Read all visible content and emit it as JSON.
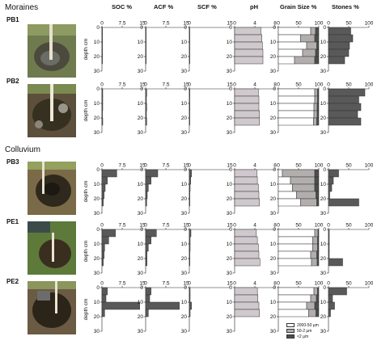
{
  "sections": {
    "moraines": "Moraines",
    "colluvium": "Colluvium"
  },
  "headers": {
    "soc": "SOC  %",
    "acf": "ACF %",
    "scf": "SCF %",
    "ph": "pH",
    "grain": "Grain Size %",
    "stones": "Stones %"
  },
  "depth_label": "depth  cm",
  "colors": {
    "bar_dark": "#595959",
    "bar_ph": "#cfc8cc",
    "coarse": "#ffffff",
    "mid": "#b3aeae",
    "fine": "#4d4d4d"
  },
  "chart_data": {
    "type": "bar",
    "orientation": "horizontal",
    "depth_ticks": [
      0,
      10,
      20,
      30
    ],
    "depth_range": [
      0,
      30
    ],
    "panels": [
      {
        "key": "soc",
        "ticks": [
          "0",
          "7.5",
          "15"
        ],
        "range": [
          0,
          15
        ]
      },
      {
        "key": "acf",
        "ticks": [
          "0",
          "7.5",
          "15"
        ],
        "range": [
          0,
          15
        ]
      },
      {
        "key": "scf",
        "ticks": [
          "0",
          "15"
        ],
        "range": [
          0,
          15
        ]
      },
      {
        "key": "ph",
        "ticks": [
          "0",
          "4",
          "8"
        ],
        "range": [
          0,
          8
        ]
      },
      {
        "key": "grain",
        "ticks": [
          "0",
          "50",
          "100"
        ],
        "range": [
          0,
          100
        ]
      },
      {
        "key": "stones",
        "ticks": [
          "0",
          "50",
          "100"
        ],
        "range": [
          0,
          100
        ]
      }
    ],
    "grain_legend": [
      "2000-50 µm",
      "50-2 µm",
      "<2 µm"
    ],
    "sites": [
      {
        "name": "PB1",
        "layers": [
          [
            0,
            5
          ],
          [
            5,
            10
          ],
          [
            10,
            15
          ],
          [
            15,
            20
          ],
          [
            20,
            25
          ]
        ],
        "soc": [
          0.2,
          0.2,
          0.2,
          0.2,
          0.2
        ],
        "acf": [
          0.2,
          0.2,
          0.2,
          0.2,
          0.2
        ],
        "scf": [
          0.1,
          0.1,
          0.1,
          0.1,
          0.1
        ],
        "ph": [
          5.2,
          5.4,
          5.5,
          5.6,
          5.6
        ],
        "grain": [
          [
            80,
            12,
            8
          ],
          [
            55,
            35,
            10
          ],
          [
            70,
            25,
            5
          ],
          [
            60,
            32,
            8
          ],
          [
            40,
            50,
            10
          ]
        ],
        "stones": [
          55,
          60,
          52,
          50,
          40
        ]
      },
      {
        "name": "PB2",
        "layers": [
          [
            0,
            5
          ],
          [
            5,
            10
          ],
          [
            10,
            15
          ],
          [
            15,
            20
          ],
          [
            20,
            25
          ]
        ],
        "soc": [
          0.3,
          0.3,
          0.3,
          0.2,
          0.3
        ],
        "acf": [
          0.4,
          0.3,
          0.4,
          0.3,
          0.4
        ],
        "scf": [
          0.2,
          0.1,
          0.2,
          0.1,
          0.1
        ],
        "ph": [
          4.7,
          4.8,
          4.8,
          4.9,
          4.9
        ],
        "grain": [
          [
            90,
            7,
            3
          ],
          [
            90,
            7,
            3
          ],
          [
            88,
            8,
            4
          ],
          [
            88,
            8,
            4
          ],
          [
            87,
            8,
            5
          ]
        ],
        "stones": [
          90,
          75,
          80,
          72,
          80
        ]
      },
      {
        "name": "PB3",
        "layers": [
          [
            0,
            5
          ],
          [
            5,
            10
          ],
          [
            10,
            15
          ],
          [
            15,
            20
          ],
          [
            20,
            25
          ]
        ],
        "soc": [
          5.5,
          2.0,
          1.2,
          0.8,
          0.5
        ],
        "acf": [
          4.5,
          2.0,
          1.0,
          0.6,
          0.4
        ],
        "scf": [
          0.8,
          0.5,
          0.3,
          0.2,
          0.2
        ],
        "ph": [
          4.4,
          4.5,
          4.7,
          4.8,
          4.9
        ],
        "grain": [
          [
            10,
            80,
            10
          ],
          [
            30,
            60,
            10
          ],
          [
            35,
            55,
            10
          ],
          [
            45,
            48,
            7
          ],
          [
            55,
            40,
            5
          ]
        ],
        "stones": [
          25,
          12,
          8,
          3,
          75
        ]
      },
      {
        "name": "PE1",
        "layers": [
          [
            0,
            5
          ],
          [
            5,
            10
          ],
          [
            10,
            15
          ],
          [
            15,
            20
          ],
          [
            20,
            25
          ]
        ],
        "soc": [
          5.0,
          2.5,
          1.0,
          0.8,
          0.5
        ],
        "acf": [
          4.0,
          2.0,
          1.0,
          0.5,
          0.5
        ],
        "scf": [
          0.6,
          0.3,
          0.3,
          0.2,
          0.2
        ],
        "ph": [
          4.3,
          4.5,
          4.7,
          4.8,
          5.0
        ],
        "grain": [
          [
            90,
            8,
            2
          ],
          [
            85,
            12,
            3
          ],
          [
            85,
            12,
            3
          ],
          [
            80,
            15,
            5
          ],
          [
            82,
            14,
            4
          ]
        ],
        "stones": [
          2,
          2,
          2,
          2,
          35
        ]
      },
      {
        "name": "PE2",
        "layers": [
          [
            0,
            5
          ],
          [
            5,
            10
          ],
          [
            10,
            15
          ],
          [
            15,
            20
          ]
        ],
        "soc": [
          2.0,
          1.5,
          14.0,
          1.0
        ],
        "acf": [
          2.0,
          1.5,
          12.5,
          1.0
        ],
        "scf": [
          0.3,
          0.3,
          0.8,
          0.3
        ],
        "ph": [
          4.5,
          4.6,
          4.8,
          4.9
        ],
        "grain": [
          [
            88,
            9,
            3
          ],
          [
            80,
            14,
            6
          ],
          [
            70,
            20,
            10
          ],
          [
            75,
            18,
            7
          ]
        ],
        "stones": [
          45,
          10,
          15,
          5
        ]
      }
    ]
  }
}
